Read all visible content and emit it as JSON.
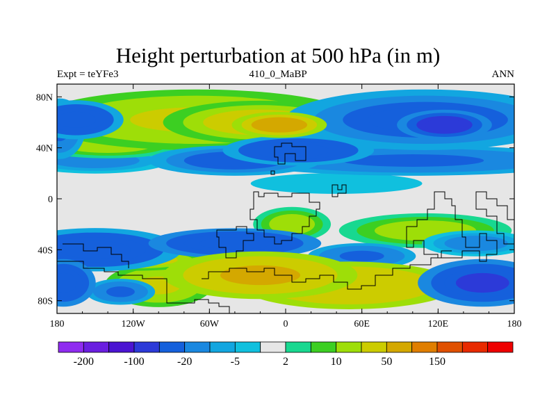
{
  "title": "Height perturbation at 500 hPa (in m)",
  "subtitle_left": "Expt = teYFe3",
  "subtitle_center": "410_0_MaBP",
  "subtitle_right": "ANN",
  "chart_data": {
    "type": "heatmap",
    "projection": "cylindrical equidistant (lat-lon)",
    "xlim": [
      -180,
      180
    ],
    "ylim": [
      -90,
      90
    ],
    "x_ticks": [
      {
        "value": -180,
        "label": "180"
      },
      {
        "value": -120,
        "label": "120W"
      },
      {
        "value": -60,
        "label": "60W"
      },
      {
        "value": 0,
        "label": "0"
      },
      {
        "value": 60,
        "label": "60E"
      },
      {
        "value": 120,
        "label": "120E"
      },
      {
        "value": 180,
        "label": "180"
      }
    ],
    "y_ticks": [
      {
        "value": 80,
        "label": "80N"
      },
      {
        "value": 40,
        "label": "40N"
      },
      {
        "value": 0,
        "label": "0"
      },
      {
        "value": -40,
        "label": "40S"
      },
      {
        "value": -80,
        "label": "80S"
      }
    ],
    "colorbar": {
      "colors": [
        "#8f2bf0",
        "#6a1ee0",
        "#4b14d2",
        "#2c3ad8",
        "#1560dc",
        "#1a88e0",
        "#12a6e0",
        "#10c0de",
        "#e6e6e6",
        "#18d890",
        "#3ccf22",
        "#9ede08",
        "#cccc00",
        "#d4a800",
        "#e07e00",
        "#e05000",
        "#e82a00",
        "#ee0000"
      ],
      "tick_labels": [
        {
          "index": 1,
          "label": "-200"
        },
        {
          "index": 3,
          "label": "-100"
        },
        {
          "index": 5,
          "label": "-20"
        },
        {
          "index": 7,
          "label": "-5"
        },
        {
          "index": 9,
          "label": "2"
        },
        {
          "index": 11,
          "label": "10"
        },
        {
          "index": 13,
          "label": "50"
        },
        {
          "index": 15,
          "label": "150"
        }
      ]
    },
    "features": [
      {
        "lon": -165,
        "lat": 62,
        "value": -40,
        "rlon": 22,
        "rlat": 9
      },
      {
        "lon": -178,
        "lat": 55,
        "value": -25,
        "rlon": 12,
        "rlat": 14
      },
      {
        "lon": -70,
        "lat": 62,
        "value": 20,
        "rlon": 75,
        "rlat": 14
      },
      {
        "lon": -5,
        "lat": 58,
        "value": 70,
        "rlon": 22,
        "rlat": 6
      },
      {
        "lon": -20,
        "lat": 60,
        "value": 35,
        "rlon": 45,
        "rlat": 10
      },
      {
        "lon": 110,
        "lat": 62,
        "value": -35,
        "rlon": 65,
        "rlat": 14
      },
      {
        "lon": 125,
        "lat": 58,
        "value": -70,
        "rlon": 22,
        "rlat": 7
      },
      {
        "lon": -40,
        "lat": 30,
        "value": -35,
        "rlon": 40,
        "rlat": 7
      },
      {
        "lon": 10,
        "lat": 38,
        "value": -40,
        "rlon": 35,
        "rlat": 7
      },
      {
        "lon": 100,
        "lat": 30,
        "value": -25,
        "rlon": 80,
        "rlat": 7
      },
      {
        "lon": -150,
        "lat": 30,
        "value": -15,
        "rlon": 35,
        "rlat": 6
      },
      {
        "lon": -140,
        "lat": 42,
        "value": 15,
        "rlon": 35,
        "rlat": 6
      },
      {
        "lon": 40,
        "lat": 12,
        "value": -5,
        "rlon": 50,
        "rlat": 6
      },
      {
        "lon": -150,
        "lat": -40,
        "value": -40,
        "rlon": 40,
        "rlat": 10
      },
      {
        "lon": -120,
        "lat": -48,
        "value": 30,
        "rlon": 35,
        "rlat": 5
      },
      {
        "lon": -40,
        "lat": -35,
        "value": -45,
        "rlon": 40,
        "rlat": 7
      },
      {
        "lon": 5,
        "lat": -20,
        "value": 15,
        "rlon": 18,
        "rlat": 8
      },
      {
        "lon": 60,
        "lat": -45,
        "value": -25,
        "rlon": 25,
        "rlat": 6
      },
      {
        "lon": 110,
        "lat": -25,
        "value": 15,
        "rlon": 40,
        "rlat": 8
      },
      {
        "lon": 150,
        "lat": -35,
        "value": -15,
        "rlon": 25,
        "rlat": 6
      },
      {
        "lon": -20,
        "lat": -60,
        "value": 60,
        "rlon": 45,
        "rlat": 11
      },
      {
        "lon": 50,
        "lat": -68,
        "value": 45,
        "rlon": 50,
        "rlat": 11
      },
      {
        "lon": 155,
        "lat": -66,
        "value": -60,
        "rlon": 30,
        "rlat": 11
      },
      {
        "lon": -175,
        "lat": -66,
        "value": -45,
        "rlon": 15,
        "rlat": 11
      },
      {
        "lon": -130,
        "lat": -73,
        "value": -25,
        "rlon": 16,
        "rlat": 6
      },
      {
        "lon": -100,
        "lat": -68,
        "value": 20,
        "rlon": 25,
        "rlat": 10
      }
    ]
  }
}
